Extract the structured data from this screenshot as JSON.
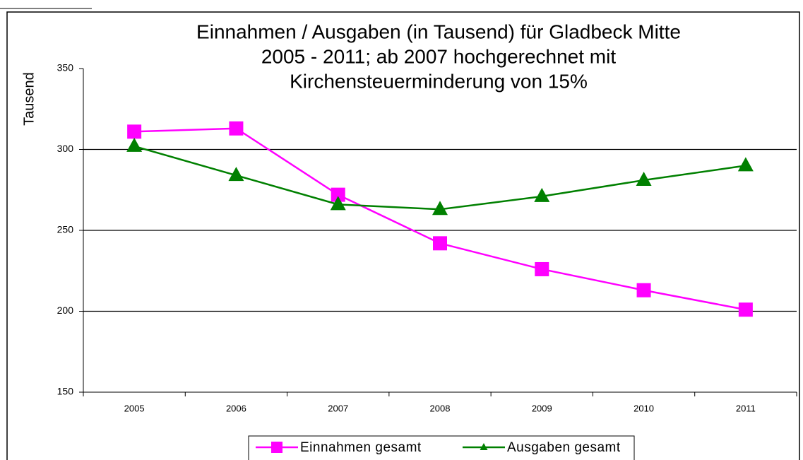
{
  "chart_data": {
    "type": "line",
    "title": [
      "Einnahmen / Ausgaben (in Tausend) für Gladbeck Mitte",
      "2005 - 2011; ab 2007 hochgerechnet mit",
      "Kirchensteuerminderung von 15%"
    ],
    "y_label": "Tausend",
    "categories": [
      "2005",
      "2006",
      "2007",
      "2008",
      "2009",
      "2010",
      "2011"
    ],
    "series": [
      {
        "name": "Einnahmen gesamt",
        "color": "#ff00ff",
        "marker": "square",
        "values": [
          311,
          313,
          272,
          242,
          226,
          213,
          201
        ]
      },
      {
        "name": "Ausgaben gesamt",
        "color": "#008000",
        "marker": "triangle",
        "values": [
          302,
          284,
          266,
          263,
          271,
          281,
          290
        ]
      }
    ],
    "ylim": [
      150,
      350
    ],
    "yticks": [
      150,
      200,
      250,
      300,
      350
    ],
    "grid": true,
    "legend": "bottom"
  }
}
